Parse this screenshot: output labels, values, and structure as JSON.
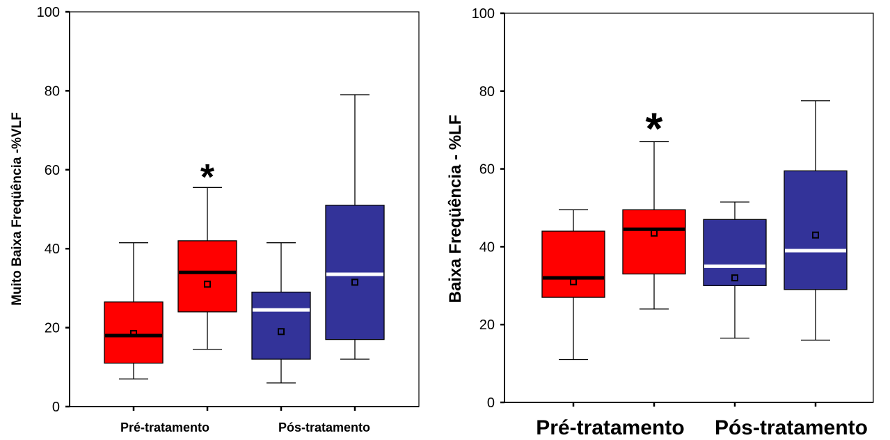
{
  "chart_data": [
    {
      "type": "boxplot",
      "ylabel": "Muito Baixa Freqüência -%VLF",
      "ylim": [
        0,
        100
      ],
      "yticks": [
        "0",
        "20",
        "40",
        "60",
        "80",
        "100"
      ],
      "group_labels": [
        "Pré-tratamento",
        "Pós-tratamento"
      ],
      "colors": {
        "pre": "#ff0000",
        "pos": "#333399",
        "median_pre": "#000000",
        "median_pos": "#ffffff"
      },
      "boxes": [
        {
          "group": "Pré-tratamento",
          "color": "#ff0000",
          "median_color": "#000000",
          "whisker_low": 7,
          "q1": 11,
          "median": 18,
          "q3": 26.5,
          "whisker_high": 41.5,
          "mean": 18.5,
          "significant": false
        },
        {
          "group": "Pré-tratamento",
          "color": "#ff0000",
          "median_color": "#000000",
          "whisker_low": 14.5,
          "q1": 24,
          "median": 34,
          "q3": 42,
          "whisker_high": 55.5,
          "mean": 31,
          "significant": true
        },
        {
          "group": "Pós-tratamento",
          "color": "#333399",
          "median_color": "#ffffff",
          "whisker_low": 6,
          "q1": 12,
          "median": 24.5,
          "q3": 29,
          "whisker_high": 41.5,
          "mean": 19,
          "significant": false
        },
        {
          "group": "Pós-tratamento",
          "color": "#333399",
          "median_color": "#ffffff",
          "whisker_low": 12,
          "q1": 17,
          "median": 33.5,
          "q3": 51,
          "whisker_high": 79,
          "mean": 31.5,
          "significant": false
        }
      ],
      "significance_marker": "*"
    },
    {
      "type": "boxplot",
      "ylabel": "Baixa Freqüência - %LF",
      "ylim": [
        0,
        100
      ],
      "yticks": [
        "0",
        "20",
        "40",
        "60",
        "80",
        "100"
      ],
      "group_labels": [
        "Pré-tratamento",
        "Pós-tratamento"
      ],
      "colors": {
        "pre": "#ff0000",
        "pos": "#333399",
        "median_pre": "#000000",
        "median_pos": "#ffffff"
      },
      "boxes": [
        {
          "group": "Pré-tratamento",
          "color": "#ff0000",
          "median_color": "#000000",
          "whisker_low": 11,
          "q1": 27,
          "median": 32,
          "q3": 44,
          "whisker_high": 49.5,
          "mean": 31,
          "significant": false
        },
        {
          "group": "Pré-tratamento",
          "color": "#ff0000",
          "median_color": "#000000",
          "whisker_low": 24,
          "q1": 33,
          "median": 44.5,
          "q3": 49.5,
          "whisker_high": 67,
          "mean": 43.5,
          "significant": true
        },
        {
          "group": "Pós-tratamento",
          "color": "#333399",
          "median_color": "#ffffff",
          "whisker_low": 16.5,
          "q1": 30,
          "median": 35,
          "q3": 47,
          "whisker_high": 51.5,
          "mean": 32,
          "significant": false
        },
        {
          "group": "Pós-tratamento",
          "color": "#333399",
          "median_color": "#ffffff",
          "whisker_low": 16,
          "q1": 29,
          "median": 39,
          "q3": 59.5,
          "whisker_high": 77.5,
          "mean": 43,
          "significant": false
        }
      ],
      "significance_marker": "*"
    }
  ]
}
